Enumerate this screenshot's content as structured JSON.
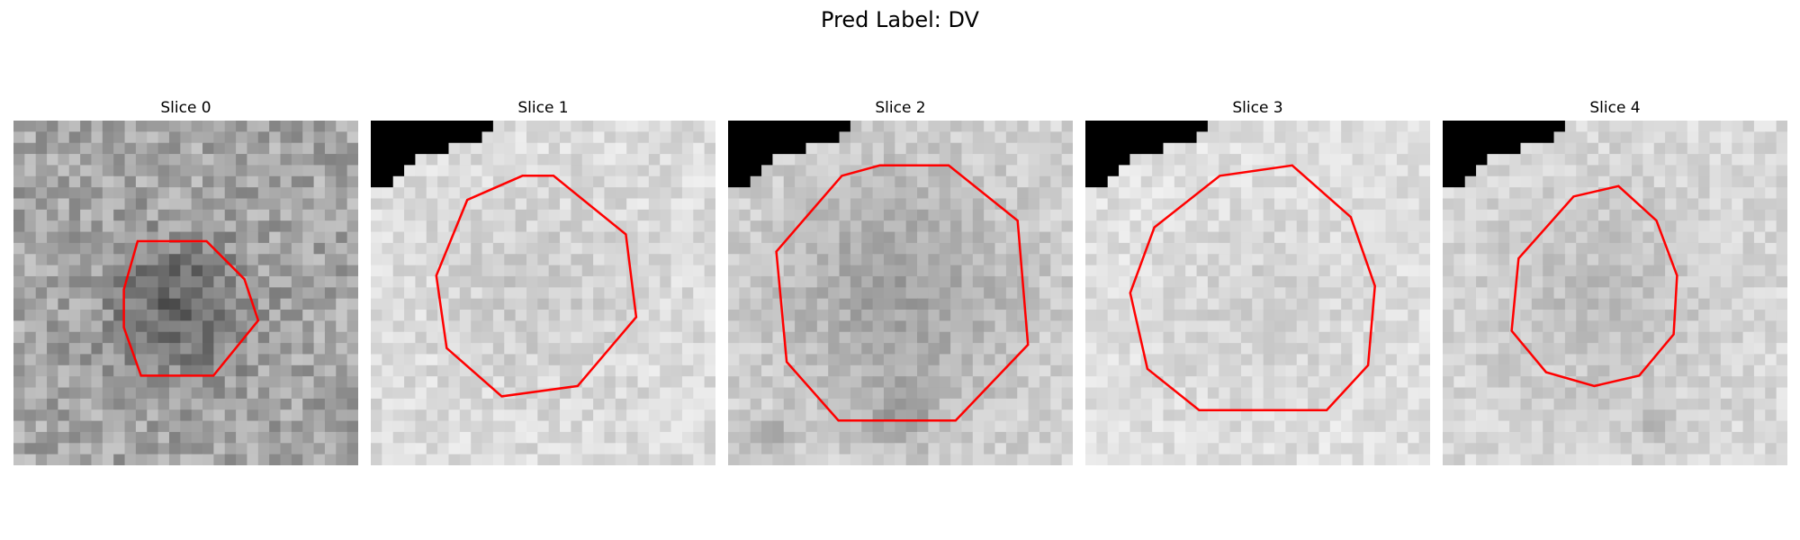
{
  "figure": {
    "title": "Pred Label: DV"
  },
  "panels": [
    {
      "title": "Slice 0",
      "seed": 11,
      "base": 165,
      "spread": 70,
      "corner": false,
      "dark": [
        [
          0.48,
          0.55,
          0.2,
          70
        ]
      ],
      "contour": [
        [
          0.36,
          0.35
        ],
        [
          0.56,
          0.35
        ],
        [
          0.67,
          0.46
        ],
        [
          0.71,
          0.58
        ],
        [
          0.58,
          0.74
        ],
        [
          0.37,
          0.74
        ],
        [
          0.32,
          0.6
        ],
        [
          0.32,
          0.49
        ]
      ]
    },
    {
      "title": "Slice 1",
      "seed": 23,
      "base": 220,
      "spread": 38,
      "corner": true,
      "dark": [
        [
          0.48,
          0.5,
          0.26,
          18
        ]
      ],
      "contour": [
        [
          0.44,
          0.16
        ],
        [
          0.53,
          0.16
        ],
        [
          0.74,
          0.33
        ],
        [
          0.77,
          0.57
        ],
        [
          0.6,
          0.77
        ],
        [
          0.38,
          0.8
        ],
        [
          0.22,
          0.66
        ],
        [
          0.19,
          0.45
        ],
        [
          0.28,
          0.23
        ]
      ]
    },
    {
      "title": "Slice 2",
      "seed": 37,
      "base": 212,
      "spread": 40,
      "corner": true,
      "dark": [
        [
          0.5,
          0.5,
          0.38,
          50
        ],
        [
          0.5,
          0.86,
          0.09,
          45
        ],
        [
          0.12,
          0.93,
          0.07,
          40
        ]
      ],
      "contour": [
        [
          0.44,
          0.13
        ],
        [
          0.64,
          0.13
        ],
        [
          0.84,
          0.29
        ],
        [
          0.87,
          0.65
        ],
        [
          0.66,
          0.87
        ],
        [
          0.32,
          0.87
        ],
        [
          0.17,
          0.7
        ],
        [
          0.14,
          0.38
        ],
        [
          0.33,
          0.16
        ]
      ]
    },
    {
      "title": "Slice 3",
      "seed": 53,
      "base": 224,
      "spread": 34,
      "corner": true,
      "dark": [
        [
          0.5,
          0.55,
          0.3,
          15
        ]
      ],
      "contour": [
        [
          0.39,
          0.16
        ],
        [
          0.6,
          0.13
        ],
        [
          0.77,
          0.28
        ],
        [
          0.84,
          0.48
        ],
        [
          0.82,
          0.71
        ],
        [
          0.7,
          0.84
        ],
        [
          0.33,
          0.84
        ],
        [
          0.18,
          0.72
        ],
        [
          0.13,
          0.5
        ],
        [
          0.2,
          0.31
        ]
      ]
    },
    {
      "title": "Slice 4",
      "seed": 71,
      "base": 218,
      "spread": 36,
      "corner": true,
      "dark": [
        [
          0.45,
          0.52,
          0.36,
          28
        ],
        [
          0.63,
          0.9,
          0.06,
          30
        ]
      ],
      "contour": [
        [
          0.38,
          0.22
        ],
        [
          0.51,
          0.19
        ],
        [
          0.62,
          0.29
        ],
        [
          0.68,
          0.45
        ],
        [
          0.67,
          0.62
        ],
        [
          0.57,
          0.74
        ],
        [
          0.44,
          0.77
        ],
        [
          0.3,
          0.73
        ],
        [
          0.2,
          0.61
        ],
        [
          0.22,
          0.4
        ]
      ]
    }
  ]
}
